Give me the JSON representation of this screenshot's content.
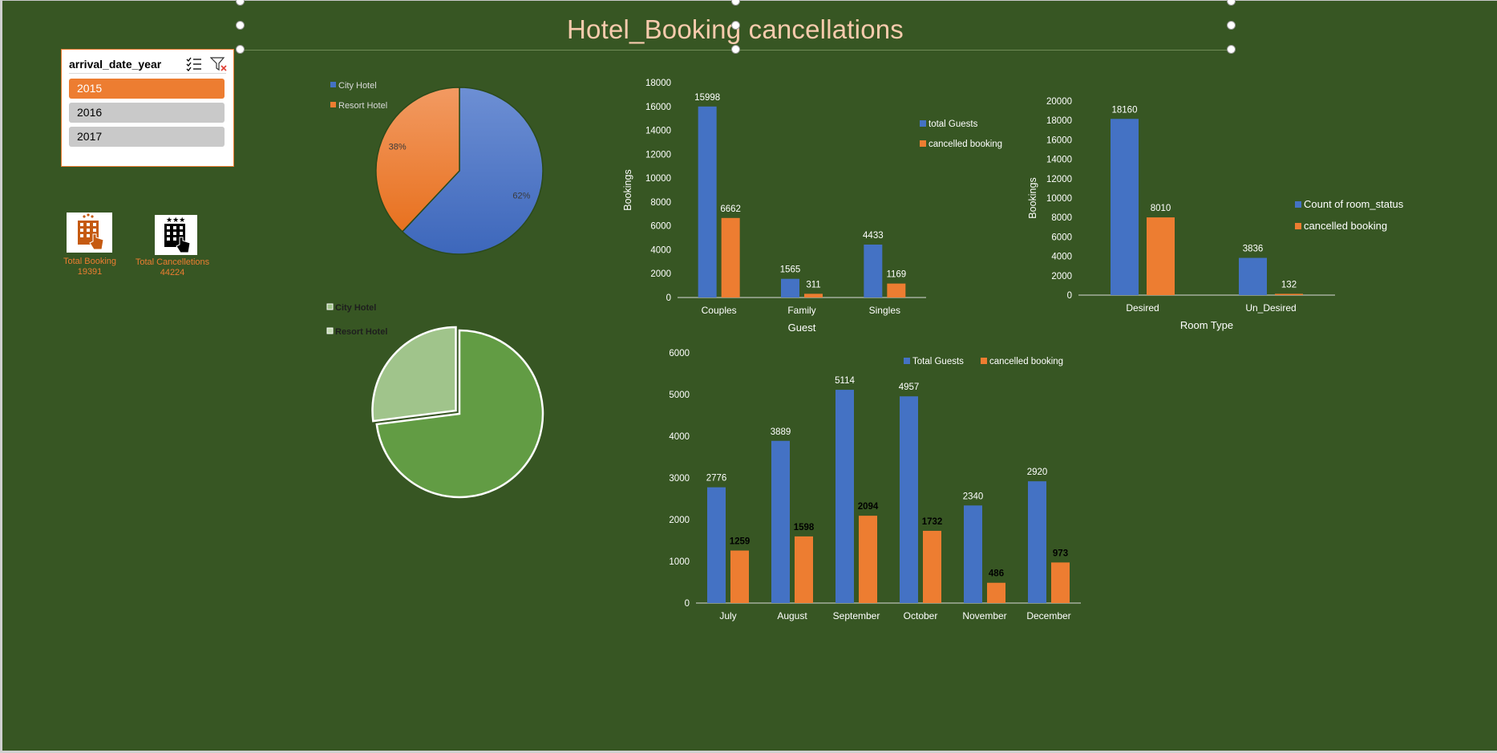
{
  "title": "Hotel_Booking cancellations",
  "slicer": {
    "title": "arrival_date_year",
    "multi_select_icon": "multi-select-icon",
    "clear_filter_icon": "clear-filter-icon",
    "items": [
      {
        "label": "2015",
        "selected": true
      },
      {
        "label": "2016",
        "selected": false
      },
      {
        "label": "2017",
        "selected": false
      }
    ]
  },
  "kpis": {
    "total_booking": {
      "label": "Total Booking",
      "value": "19391",
      "icon": "hotel-booking-icon"
    },
    "total_cancellations": {
      "label": "Total Cancelletions",
      "value": "44224",
      "icon": "hotel-cancellation-icon"
    }
  },
  "colors": {
    "background": "#375623",
    "blue": "#4472c4",
    "orange": "#ed7d31",
    "green": "#629c44",
    "light_green": "#a0c48b",
    "title": "#f8cbad"
  },
  "chart_data": [
    {
      "id": "pie-hotel",
      "type": "pie",
      "legend": [
        "City Hotel",
        "Resort Hotel"
      ],
      "legend_position": "top-left",
      "values": [
        62,
        38
      ],
      "data_labels": [
        "62%",
        "38%"
      ]
    },
    {
      "id": "pie-hotel-green",
      "type": "pie",
      "legend": [
        "City Hotel",
        "Resort Hotel"
      ],
      "legend_position": "top-left",
      "values": [
        73,
        27
      ],
      "exploded": "Resort Hotel"
    },
    {
      "id": "bar-guest",
      "type": "bar",
      "categories": [
        "Couples",
        "Family",
        "Singles"
      ],
      "series": [
        {
          "name": "total Guests",
          "values": [
            15998,
            1565,
            4433
          ]
        },
        {
          "name": "cancelled booking",
          "values": [
            6662,
            311,
            1169
          ]
        }
      ],
      "xlabel": "Guest",
      "ylabel": "Bookings",
      "ylim": [
        0,
        18000
      ],
      "yticks": [
        0,
        2000,
        4000,
        6000,
        8000,
        10000,
        12000,
        14000,
        16000,
        18000
      ],
      "legend_position": "right"
    },
    {
      "id": "bar-room-type",
      "type": "bar",
      "categories": [
        "Desired",
        "Un_Desired"
      ],
      "series": [
        {
          "name": "Count of room_status",
          "values": [
            18160,
            3836
          ]
        },
        {
          "name": "cancelled booking",
          "values": [
            8010,
            132
          ]
        }
      ],
      "xlabel": "Room Type",
      "ylabel": "Bookings",
      "ylim": [
        0,
        20000
      ],
      "yticks": [
        0,
        2000,
        4000,
        6000,
        8000,
        10000,
        12000,
        14000,
        16000,
        18000,
        20000
      ],
      "legend_position": "right"
    },
    {
      "id": "bar-month",
      "type": "bar",
      "categories": [
        "July",
        "August",
        "September",
        "October",
        "November",
        "December"
      ],
      "series": [
        {
          "name": "Total Guests",
          "values": [
            2776,
            3889,
            5114,
            4957,
            2340,
            2920
          ]
        },
        {
          "name": "cancelled booking",
          "values": [
            1259,
            1598,
            2094,
            1732,
            486,
            973
          ]
        }
      ],
      "xlabel": "",
      "ylabel": "",
      "ylim": [
        0,
        6000
      ],
      "yticks": [
        0,
        1000,
        2000,
        3000,
        4000,
        5000,
        6000
      ],
      "legend_position": "top"
    }
  ]
}
